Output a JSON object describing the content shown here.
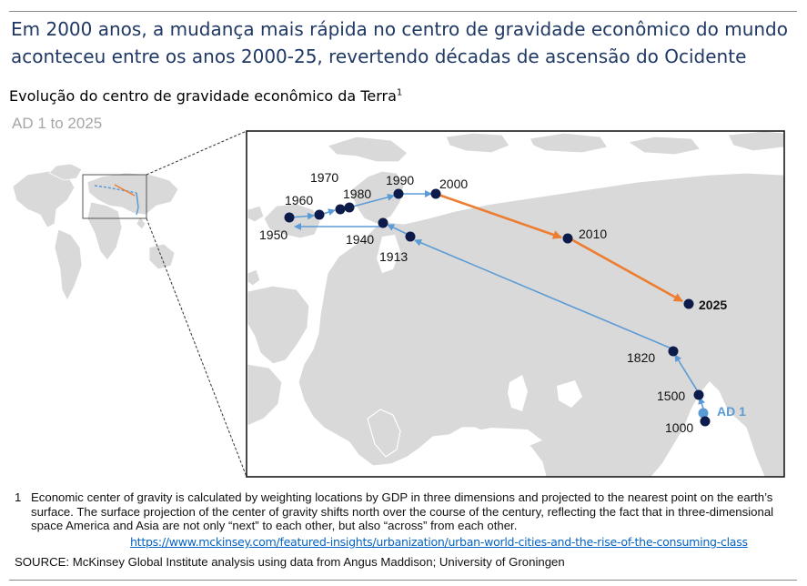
{
  "headline": "Em 2000 anos, a mudança mais rápida no centro de gravidade econômico do mundo aconteceu entre os anos 2000-25, revertendo décadas de ascensão do Ocidente",
  "subtitle": "Evolução do centro de gravidade econômico da Terra",
  "subtitle_sup": "1",
  "ad_range": "AD 1 to 2025",
  "colors": {
    "headline": "#1f3864",
    "early_path": "#5b9bd5",
    "recent_path": "#ed7d31",
    "point": "#0d1b4b",
    "ad1_point": "#5b9bd5",
    "land": "#d9d9d9"
  },
  "points": [
    {
      "label": "AD 1",
      "style": "ad1"
    },
    {
      "label": "1000"
    },
    {
      "label": "1500"
    },
    {
      "label": "1820"
    },
    {
      "label": "1913"
    },
    {
      "label": "1940"
    },
    {
      "label": "1950"
    },
    {
      "label": "1960"
    },
    {
      "label": "1970"
    },
    {
      "label": "1980"
    },
    {
      "label": "1990"
    },
    {
      "label": "2000"
    },
    {
      "label": "2010"
    },
    {
      "label": "2025",
      "style": "bold"
    }
  ],
  "footnote": {
    "number": "1",
    "text": "Economic center of gravity is calculated by weighting locations by GDP in three dimensions and projected to the nearest point on the earth’s surface. The surface projection of the center of gravity shifts north over the course of the century, reflecting the fact that in three-dimensional space America and Asia are not only “next” to each other, but also “across” from each other."
  },
  "link": "https://www.mckinsey.com/featured-insights/urbanization/urban-world-cities-and-the-rise-of-the-consuming-class",
  "source": "SOURCE: McKinsey Global Institute analysis using data from Angus Maddison; University of Groningen"
}
